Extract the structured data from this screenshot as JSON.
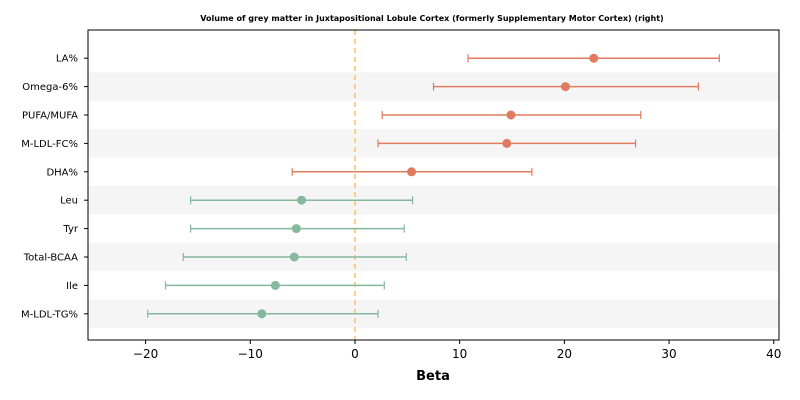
{
  "chart_data": {
    "type": "forest",
    "title": "Volume of grey matter in Juxtapositional Lobule Cortex (formerly Supplementary Motor Cortex) (right)",
    "xlabel": "Beta",
    "xlim": [
      -25.5,
      40.5
    ],
    "xticks": [
      -20,
      -10,
      0,
      10,
      20,
      30,
      40
    ],
    "xtick_labels": [
      "−20",
      "−10",
      "0",
      "10",
      "20",
      "30",
      "40"
    ],
    "reference_line": 0,
    "colors": {
      "positive": "#e07b5f",
      "negative": "#85b89c",
      "reference": "#f5c26b",
      "band": "#f5f5f5"
    },
    "rows": [
      {
        "label": "LA%",
        "beta": 22.8,
        "lower": 10.8,
        "upper": 34.8,
        "group": "positive"
      },
      {
        "label": "Omega-6%",
        "beta": 20.1,
        "lower": 7.5,
        "upper": 32.8,
        "group": "positive"
      },
      {
        "label": "PUFA/MUFA",
        "beta": 14.9,
        "lower": 2.6,
        "upper": 27.3,
        "group": "positive"
      },
      {
        "label": "M-LDL-FC%",
        "beta": 14.5,
        "lower": 2.2,
        "upper": 26.8,
        "group": "positive"
      },
      {
        "label": "DHA%",
        "beta": 5.4,
        "lower": -6.0,
        "upper": 16.9,
        "group": "positive"
      },
      {
        "label": "Leu",
        "beta": -5.1,
        "lower": -15.7,
        "upper": 5.5,
        "group": "negative"
      },
      {
        "label": "Tyr",
        "beta": -5.6,
        "lower": -15.7,
        "upper": 4.7,
        "group": "negative"
      },
      {
        "label": "Total-BCAA",
        "beta": -5.8,
        "lower": -16.4,
        "upper": 4.9,
        "group": "negative"
      },
      {
        "label": "Ile",
        "beta": -7.6,
        "lower": -18.1,
        "upper": 2.8,
        "group": "negative"
      },
      {
        "label": "M-LDL-TG%",
        "beta": -8.9,
        "lower": -19.8,
        "upper": 2.2,
        "group": "negative"
      }
    ]
  }
}
